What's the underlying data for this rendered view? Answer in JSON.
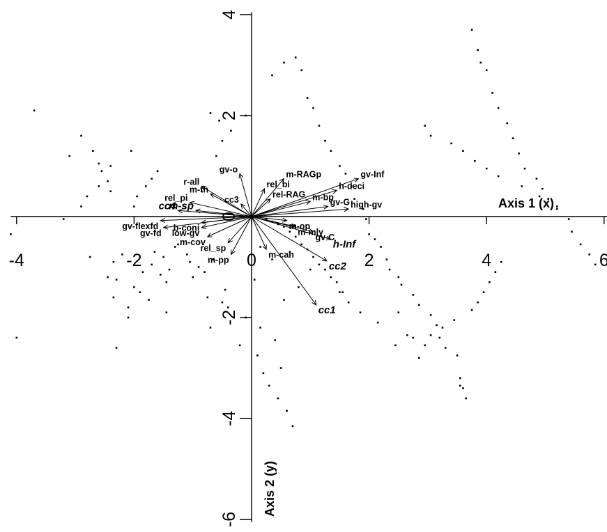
{
  "chart_data": {
    "type": "scatter",
    "title": "",
    "xlabel": "Axis 1 (x)",
    "ylabel": "Axis 2 (y)",
    "xlim": [
      -4.1,
      6.05
    ],
    "ylim": [
      -6.05,
      4.05
    ],
    "x_ticks": [
      -4,
      -2,
      0,
      2,
      4,
      6
    ],
    "y_ticks": [
      -6,
      -4,
      -2,
      0,
      2,
      4
    ],
    "x_tick_labels": [
      "-4",
      "-2",
      "0",
      "2",
      "4",
      "6"
    ],
    "y_tick_labels": [
      "-6",
      "-4",
      "-2",
      "0",
      "2",
      "4"
    ],
    "grid": false,
    "legend": "none",
    "points": {
      "x": [
        -4.0,
        -4.1,
        -3.7,
        -3.2,
        -3.1,
        -2.9,
        -2.7,
        -2.6,
        -2.75,
        -2.55,
        -2.45,
        -2.4,
        -2.45,
        -2.35,
        -2.3,
        -2.2,
        -2.1,
        -2.35,
        -2.3,
        -2.1,
        -2.0,
        -1.9,
        -1.85,
        -1.75,
        -1.7,
        -1.65,
        -1.55,
        -1.5,
        -1.45,
        -1.45,
        -1.4,
        -1.3,
        -1.25,
        -1.1,
        -0.9,
        -0.8,
        -0.65,
        -1.05,
        -1.0,
        -0.75,
        -0.7,
        -0.5,
        -0.45,
        -0.4,
        -0.2,
        -0.1,
        0.05,
        -0.1,
        -0.35,
        -0.5,
        -0.55,
        -0.6,
        -0.7,
        -0.85,
        -1.6,
        -1.7,
        -1.8,
        -1.95,
        -2.0,
        -2.05,
        -2.4,
        -2.6,
        -2.8,
        -2.9,
        0.35,
        0.55,
        0.75,
        0.85,
        0.95,
        1.05,
        1.15,
        1.25,
        1.35,
        1.5,
        1.6,
        1.7,
        1.75,
        1.9,
        1.95,
        2.0,
        2.1,
        2.2,
        2.3,
        2.35,
        2.5,
        2.55,
        2.75,
        2.85,
        3.05,
        3.15,
        3.2,
        3.3,
        3.5,
        3.55,
        3.6,
        3.65,
        3.75,
        3.85,
        3.9,
        4.0,
        4.1,
        4.2,
        4.35,
        4.45,
        4.55,
        4.65,
        4.85,
        4.95,
        5.05,
        5.2,
        5.4,
        5.45,
        5.6,
        5.75,
        5.85,
        4.25,
        4.15,
        4.05,
        3.95,
        3.85,
        3.75,
        3.45,
        3.25,
        3.05,
        2.95,
        2.85,
        2.65,
        2.45,
        2.15,
        1.85,
        1.65,
        1.55,
        1.45,
        1.35,
        1.25,
        1.15,
        1.05,
        0.95,
        0.85,
        0.75,
        0.65,
        0.55,
        0.45,
        0.35,
        0.25,
        0.15,
        0.1,
        0.2,
        0.3,
        0.45,
        0.6,
        0.7,
        0.5,
        0.4,
        2.95,
        3.05,
        3.4,
        3.6,
        3.8,
        4.0,
        4.2,
        4.6,
        4.9,
        5.2,
        3.55,
        2.75,
        2.5,
        1.5,
        1.0,
        0.35,
        0.65,
        0.8,
        0.55,
        0.15
      ],
      "y": [
        -2.4,
        -0.35,
        2.1,
        -0.05,
        1.2,
        1.6,
        1.3,
        1.05,
        -0.8,
        0.9,
        0.7,
        0.5,
        -1.2,
        -1.6,
        -2.6,
        -0.75,
        -1.8,
        -0.9,
        -1.25,
        -2.0,
        -1.4,
        -1.5,
        -1.1,
        -1.65,
        -0.95,
        -0.7,
        -1.15,
        -0.8,
        -1.3,
        -1.9,
        -1.05,
        -0.6,
        -0.55,
        -0.75,
        -1.0,
        -1.1,
        -0.85,
        -0.9,
        -1.2,
        -1.6,
        -2.2,
        -1.7,
        -1.45,
        -1.8,
        -2.55,
        -2.0,
        -1.25,
        2.0,
        1.7,
        1.5,
        1.9,
        1.2,
        2.05,
        0.5,
        0.9,
        0.75,
        0.6,
        0.4,
        0.2,
        1.3,
        1.0,
        0.6,
        0.4,
        0.2,
        2.8,
        3.05,
        3.15,
        2.9,
        2.35,
        2.15,
        1.8,
        1.5,
        1.3,
        1.0,
        0.85,
        0.6,
        0.35,
        0.15,
        -0.05,
        -0.35,
        -0.45,
        -0.6,
        -0.85,
        -1.05,
        -1.2,
        -1.35,
        -1.55,
        -1.75,
        -1.95,
        -2.15,
        -2.4,
        -2.6,
        -2.75,
        -3.2,
        -3.4,
        -3.6,
        3.7,
        3.3,
        3.05,
        2.9,
        2.45,
        2.15,
        1.85,
        1.55,
        1.25,
        0.95,
        0.75,
        0.55,
        0.35,
        0.15,
        -0.05,
        -0.3,
        -0.55,
        -0.75,
        -0.95,
        -0.9,
        -1.1,
        -1.3,
        -1.5,
        -1.7,
        -1.85,
        -2.05,
        -2.2,
        -2.35,
        -2.55,
        -2.8,
        -2.35,
        -2.55,
        -2.1,
        -1.9,
        -1.7,
        -1.5,
        -1.3,
        -1.2,
        -1.05,
        -0.95,
        -0.8,
        -0.65,
        -0.55,
        -0.4,
        -0.3,
        -0.2,
        -0.15,
        -0.1,
        -0.05,
        -2.2,
        -2.75,
        -3.1,
        -3.35,
        -3.6,
        -3.85,
        -4.15,
        -3.0,
        -2.45,
        1.8,
        1.6,
        1.45,
        1.3,
        1.1,
        0.95,
        0.8,
        0.6,
        0.4,
        0.2,
        -3.35,
        -2.4,
        -1.9,
        -1.5,
        -1.05,
        -0.85,
        -0.7,
        -1.4,
        -1.65,
        -0.6
      ],
      "marker": "dot",
      "color": "#000000"
    },
    "vectors": [
      {
        "label": "gv-Inf",
        "x": 1.82,
        "y": 0.75,
        "italic": false
      },
      {
        "label": "m-RAGp",
        "x": 0.55,
        "y": 0.75,
        "italic": false
      },
      {
        "label": "rel_bi",
        "x": 0.22,
        "y": 0.55,
        "italic": false
      },
      {
        "label": "rel-RAG",
        "x": 0.32,
        "y": 0.35,
        "italic": false
      },
      {
        "label": "h-deci",
        "x": 1.45,
        "y": 0.52,
        "italic": false
      },
      {
        "label": "m-bp",
        "x": 1.0,
        "y": 0.3,
        "italic": false
      },
      {
        "label": "gv-G",
        "x": 1.3,
        "y": 0.2,
        "italic": false
      },
      {
        "label": "high-gv",
        "x": 1.65,
        "y": 0.15,
        "italic": false
      },
      {
        "label": "gv-o",
        "x": -0.2,
        "y": 0.85,
        "italic": false
      },
      {
        "label": "r-all",
        "x": -0.85,
        "y": 0.6,
        "italic": false
      },
      {
        "label": "m-th",
        "x": -0.7,
        "y": 0.45,
        "italic": false
      },
      {
        "label": "rel_pi",
        "x": -1.05,
        "y": 0.28,
        "italic": false
      },
      {
        "label": "cc3",
        "x": -0.18,
        "y": 0.25,
        "italic": false
      },
      {
        "label": "cc4",
        "x": -1.25,
        "y": 0.12,
        "italic": true
      },
      {
        "label": "m-sp",
        "x": -0.95,
        "y": 0.12,
        "italic": true
      },
      {
        "label": "gv-flexfd",
        "x": -1.55,
        "y": -0.08,
        "italic": false
      },
      {
        "label": "b-coni",
        "x": -0.85,
        "y": -0.12,
        "italic": false
      },
      {
        "label": "gv-fd",
        "x": -1.5,
        "y": -0.22,
        "italic": false
      },
      {
        "label": "low-gv",
        "x": -0.85,
        "y": -0.22,
        "italic": false
      },
      {
        "label": "m-cov",
        "x": -0.75,
        "y": -0.4,
        "italic": false
      },
      {
        "label": "rel_sp",
        "x": -0.4,
        "y": -0.52,
        "italic": false
      },
      {
        "label": "m-pp",
        "x": -0.35,
        "y": -0.75,
        "italic": false
      },
      {
        "label": "m-can",
        "x": 0.25,
        "y": -0.65,
        "italic": false
      },
      {
        "label": "m-op",
        "x": 0.6,
        "y": -0.08,
        "italic": false
      },
      {
        "label": "m-mly",
        "x": 0.75,
        "y": -0.2,
        "italic": false
      },
      {
        "label": "gv-C",
        "x": 1.05,
        "y": -0.3,
        "italic": false
      },
      {
        "label": "h-Inf",
        "x": 1.35,
        "y": -0.45,
        "italic": true
      },
      {
        "label": "cc2",
        "x": 1.28,
        "y": -0.88,
        "italic": true
      },
      {
        "label": "cc1",
        "x": 1.1,
        "y": -1.75,
        "italic": true
      }
    ]
  }
}
